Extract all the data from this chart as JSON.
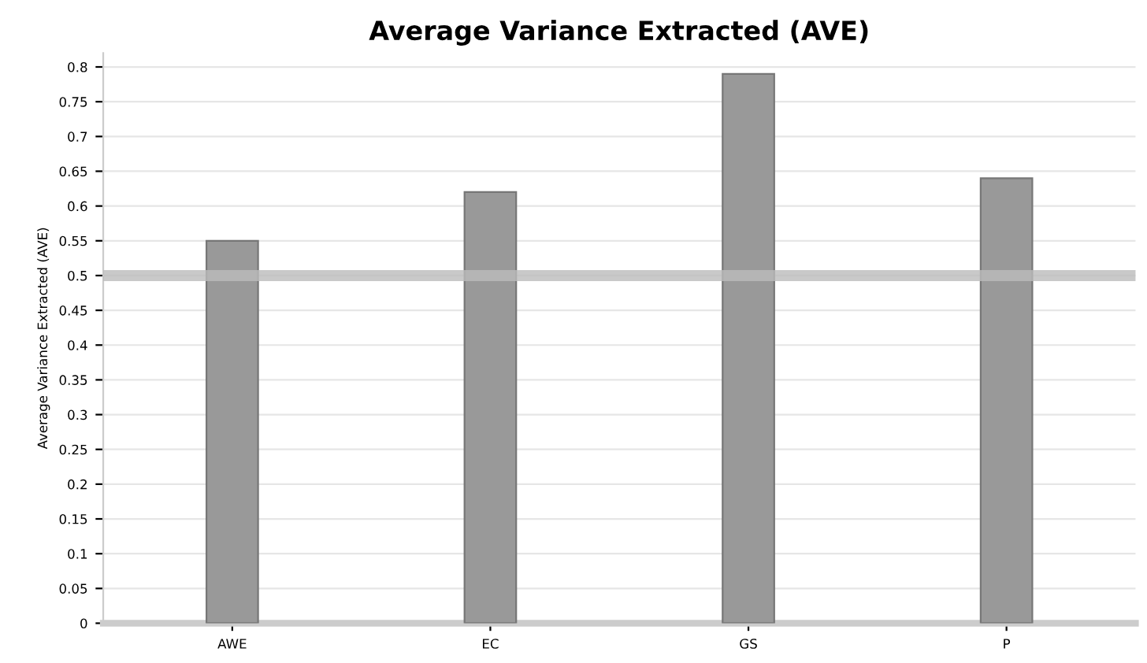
{
  "chart_data": {
    "type": "bar",
    "title": "Average Variance Extracted (AVE)",
    "ylabel": "Average Variance Extracted (AVE)",
    "categories": [
      "AWE",
      "EC",
      "GS",
      "P"
    ],
    "values": [
      0.55,
      0.62,
      0.79,
      0.64
    ],
    "color": "#999999",
    "ylim": [
      0,
      0.82
    ],
    "yticks": [
      0,
      0.05,
      0.1,
      0.15,
      0.2,
      0.25,
      0.3,
      0.35,
      0.4,
      0.45,
      0.5,
      0.55,
      0.6,
      0.65,
      0.7,
      0.75,
      0.8
    ],
    "grid": "y",
    "ref_lines": [
      {
        "axis": "y",
        "value": 0.5,
        "color": "#bbbbbb"
      }
    ]
  }
}
